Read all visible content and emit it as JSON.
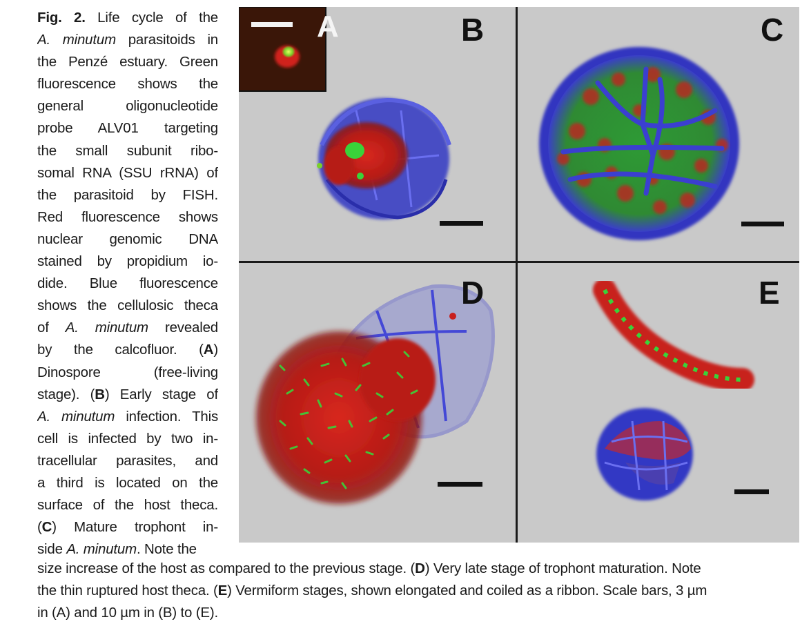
{
  "caption": {
    "fig_label": "Fig. 2.",
    "side_lines": [
      {
        "parts": [
          {
            "t": "Fig. 2.",
            "b": true
          },
          {
            "t": " Life cycle of the"
          }
        ]
      },
      {
        "parts": [
          {
            "t": "A. minutum",
            "i": true
          },
          {
            "t": " parasitoids in"
          }
        ]
      },
      {
        "parts": [
          {
            "t": "the Penzé estuary. Green"
          }
        ]
      },
      {
        "parts": [
          {
            "t": "fluorescence shows the"
          }
        ]
      },
      {
        "parts": [
          {
            "t": "general oligonucleotide"
          }
        ]
      },
      {
        "parts": [
          {
            "t": "probe ALV01 targeting"
          }
        ]
      },
      {
        "parts": [
          {
            "t": "the small subunit ribo-"
          }
        ]
      },
      {
        "parts": [
          {
            "t": "somal RNA (SSU rRNA) of"
          }
        ]
      },
      {
        "parts": [
          {
            "t": "the parasitoid by FISH."
          }
        ]
      },
      {
        "parts": [
          {
            "t": "Red fluorescence shows"
          }
        ]
      },
      {
        "parts": [
          {
            "t": "nuclear genomic DNA"
          }
        ]
      },
      {
        "parts": [
          {
            "t": "stained by propidium io-"
          }
        ]
      },
      {
        "parts": [
          {
            "t": "dide. Blue fluorescence"
          }
        ]
      },
      {
        "parts": [
          {
            "t": "shows the cellulosic theca"
          }
        ]
      },
      {
        "parts": [
          {
            "t": "of "
          },
          {
            "t": "A. minutum",
            "i": true
          },
          {
            "t": " revealed"
          }
        ]
      },
      {
        "parts": [
          {
            "t": "by the calcofluor. ("
          },
          {
            "t": "A",
            "b": true
          },
          {
            "t": ")"
          }
        ]
      },
      {
        "parts": [
          {
            "t": "Dinospore (free-living"
          }
        ]
      },
      {
        "parts": [
          {
            "t": "stage). ("
          },
          {
            "t": "B",
            "b": true
          },
          {
            "t": ") Early stage of"
          }
        ]
      },
      {
        "parts": [
          {
            "t": "A. minutum",
            "i": true
          },
          {
            "t": " infection. This"
          }
        ]
      },
      {
        "parts": [
          {
            "t": "cell is infected by two in-"
          }
        ]
      },
      {
        "parts": [
          {
            "t": "tracellular parasites, and"
          }
        ]
      },
      {
        "parts": [
          {
            "t": "a third is located on the"
          }
        ]
      },
      {
        "parts": [
          {
            "t": "surface of the host theca."
          }
        ]
      },
      {
        "parts": [
          {
            "t": "("
          },
          {
            "t": "C",
            "b": true
          },
          {
            "t": ") Mature trophont in-"
          }
        ]
      },
      {
        "parts": [
          {
            "t": "side "
          },
          {
            "t": "A. minutum",
            "i": true
          },
          {
            "t": ". Note the"
          }
        ]
      }
    ],
    "bottom_lines": [
      {
        "parts": [
          {
            "t": "size increase of the host as compared to the previous stage. ("
          },
          {
            "t": "D",
            "b": true
          },
          {
            "t": ") Very late stage of trophont maturation. Note"
          }
        ]
      },
      {
        "parts": [
          {
            "t": "the thin ruptured host theca. ("
          },
          {
            "t": "E",
            "b": true
          },
          {
            "t": ") Vermiform stages, shown elongated and coiled as a ribbon. Scale bars, 3 µm"
          }
        ]
      },
      {
        "parts": [
          {
            "t": "in (A) and 10 µm in (B) to (E)."
          }
        ]
      }
    ]
  },
  "figure": {
    "panels": {
      "A": "A",
      "B": "B",
      "C": "C",
      "D": "D",
      "E": "E"
    }
  },
  "colors": {
    "background": "#c9c9c9",
    "theca_blue": "#3b3fd0",
    "nucleus_red": "#c8201e",
    "probe_green": "#3ad23a",
    "divider": "#1a1a1a",
    "inset_bg": "#3a1608"
  }
}
